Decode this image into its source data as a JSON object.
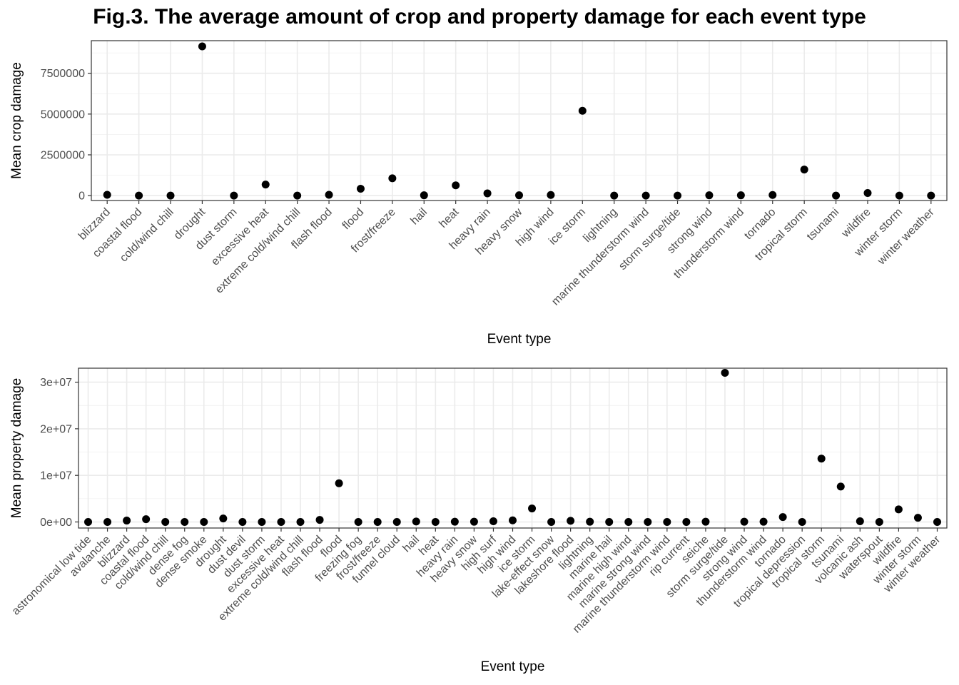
{
  "title": "Fig.3. The average amount of crop and property damage for each event type",
  "chart_data": [
    {
      "type": "scatter",
      "xlabel": "Event type",
      "ylabel": "Mean crop damage",
      "ylim": [
        -300000,
        9500000
      ],
      "yticks": [
        0,
        2500000,
        5000000,
        7500000
      ],
      "ytick_labels": [
        "0",
        "2500000",
        "5000000",
        "7500000"
      ],
      "grid": true,
      "categories": [
        "blizzard",
        "coastal flood",
        "cold/wind chill",
        "drought",
        "dust storm",
        "excessive heat",
        "extreme cold/wind chill",
        "flash flood",
        "flood",
        "frost/freeze",
        "hail",
        "heat",
        "heavy rain",
        "heavy snow",
        "high wind",
        "ice storm",
        "lightning",
        "marine thunderstorm wind",
        "storm surge/tide",
        "strong wind",
        "thunderstorm wind",
        "tornado",
        "tropical storm",
        "tsunami",
        "wildfire",
        "winter storm",
        "winter weather"
      ],
      "values": [
        50000,
        0,
        0,
        9150000,
        0,
        680000,
        0,
        50000,
        420000,
        1060000,
        20000,
        630000,
        140000,
        20000,
        40000,
        5200000,
        0,
        0,
        0,
        20000,
        20000,
        40000,
        1600000,
        0,
        160000,
        0,
        0
      ]
    },
    {
      "type": "scatter",
      "xlabel": "Event type",
      "ylabel": "Mean property damage",
      "ylim": [
        -1300000,
        33000000
      ],
      "yticks": [
        0,
        10000000,
        20000000,
        30000000
      ],
      "ytick_labels": [
        "0e+00",
        "1e+07",
        "2e+07",
        "3e+07"
      ],
      "grid": true,
      "categories": [
        "astronomical low tide",
        "avalanche",
        "blizzard",
        "coastal flood",
        "cold/wind chill",
        "dense fog",
        "dense smoke",
        "drought",
        "dust devil",
        "dust storm",
        "excessive heat",
        "extreme cold/wind chill",
        "flash flood",
        "flood",
        "freezing fog",
        "frost/freeze",
        "funnel cloud",
        "hail",
        "heat",
        "heavy rain",
        "heavy snow",
        "high surf",
        "high wind",
        "ice storm",
        "lake-effect snow",
        "lakeshore flood",
        "lightning",
        "marine hail",
        "marine high wind",
        "marine strong wind",
        "marine thunderstorm wind",
        "rip current",
        "seiche",
        "storm surge/tide",
        "strong wind",
        "thunderstorm wind",
        "tornado",
        "tropical depression",
        "tropical storm",
        "tsunami",
        "volcanic ash",
        "waterspout",
        "wildfire",
        "winter storm",
        "winter weather"
      ],
      "values": [
        0,
        0,
        300000,
        600000,
        0,
        0,
        0,
        750000,
        0,
        0,
        0,
        0,
        450000,
        8300000,
        0,
        0,
        0,
        100000,
        0,
        50000,
        50000,
        150000,
        350000,
        2900000,
        0,
        250000,
        50000,
        0,
        0,
        0,
        0,
        0,
        50000,
        32000000,
        50000,
        50000,
        1050000,
        0,
        13600000,
        7600000,
        150000,
        0,
        2700000,
        900000,
        0
      ]
    }
  ]
}
